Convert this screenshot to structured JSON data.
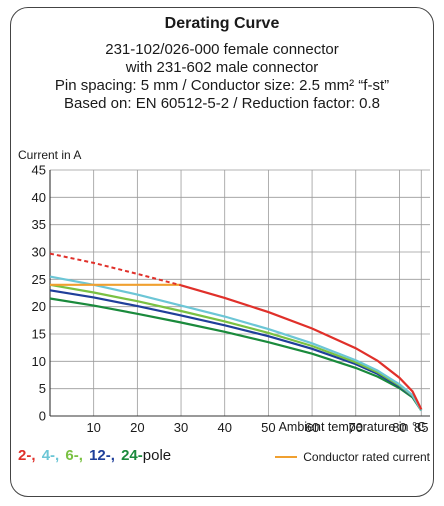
{
  "header": {
    "title": "Derating Curve",
    "line1": "231-102/026-000 female connector",
    "line2": "with 231-602 male connector",
    "line3": "Pin spacing: 5 mm / Conductor size: 2.5 mm² “f-st”",
    "line4": "Based on: EN 60512-5-2 / Reduction factor: 0.8"
  },
  "legend": {
    "poles": [
      {
        "label": "2-,",
        "color": "#e0302a"
      },
      {
        "label": "4-,",
        "color": "#6cc6d6"
      },
      {
        "label": "6-,",
        "color": "#7ac142"
      },
      {
        "label": "12-,",
        "color": "#1f3f9a"
      },
      {
        "label": "24-",
        "color": "#1a8a3c"
      }
    ],
    "poles_suffix": "pole",
    "rated_label": "Conductor rated current",
    "rated_color": "#f0a030"
  },
  "chart_data": {
    "type": "line",
    "title": "Derating Curve",
    "ylabel": "Current in A",
    "xlabel": "Ambient temperature in °C",
    "xlim": [
      0,
      87
    ],
    "ylim": [
      0,
      45
    ],
    "xticks": [
      10,
      20,
      30,
      40,
      50,
      60,
      70,
      80,
      85
    ],
    "yticks": [
      0,
      5,
      10,
      15,
      20,
      25,
      30,
      35,
      40,
      45
    ],
    "grid": true,
    "legend_position": "bottom",
    "series": [
      {
        "name": "2-",
        "color": "#e0302a",
        "points": [
          [
            0,
            29.7
          ],
          [
            10,
            28.0
          ],
          [
            20,
            26.0
          ],
          [
            30,
            23.9
          ],
          [
            40,
            21.6
          ],
          [
            50,
            19.0
          ],
          [
            60,
            16.0
          ],
          [
            70,
            12.4
          ],
          [
            75,
            10.1
          ],
          [
            80,
            7.0
          ],
          [
            83,
            4.5
          ],
          [
            85,
            1.2
          ]
        ],
        "dashed_until_x": 30
      },
      {
        "name": "4-",
        "color": "#6cc6d6",
        "points": [
          [
            0,
            25.5
          ],
          [
            10,
            24.0
          ],
          [
            20,
            22.2
          ],
          [
            30,
            20.2
          ],
          [
            40,
            18.2
          ],
          [
            50,
            15.9
          ],
          [
            60,
            13.3
          ],
          [
            70,
            10.2
          ],
          [
            75,
            8.3
          ],
          [
            80,
            5.8
          ],
          [
            83,
            3.8
          ],
          [
            85,
            1.0
          ]
        ]
      },
      {
        "name": "6-",
        "color": "#7ac142",
        "points": [
          [
            0,
            24.0
          ],
          [
            10,
            22.6
          ],
          [
            20,
            21.0
          ],
          [
            30,
            19.2
          ],
          [
            40,
            17.3
          ],
          [
            50,
            15.2
          ],
          [
            60,
            12.8
          ],
          [
            70,
            9.8
          ],
          [
            75,
            8.0
          ],
          [
            80,
            5.6
          ],
          [
            83,
            3.7
          ],
          [
            85,
            1.0
          ]
        ]
      },
      {
        "name": "12-",
        "color": "#1f3f9a",
        "points": [
          [
            0,
            23.0
          ],
          [
            10,
            21.7
          ],
          [
            20,
            20.1
          ],
          [
            30,
            18.4
          ],
          [
            40,
            16.6
          ],
          [
            50,
            14.6
          ],
          [
            60,
            12.3
          ],
          [
            70,
            9.5
          ],
          [
            75,
            7.7
          ],
          [
            80,
            5.4
          ],
          [
            83,
            3.6
          ],
          [
            85,
            1.0
          ]
        ]
      },
      {
        "name": "24-",
        "color": "#1a8a3c",
        "points": [
          [
            0,
            21.5
          ],
          [
            10,
            20.2
          ],
          [
            20,
            18.7
          ],
          [
            30,
            17.1
          ],
          [
            40,
            15.4
          ],
          [
            50,
            13.5
          ],
          [
            60,
            11.4
          ],
          [
            70,
            8.8
          ],
          [
            75,
            7.2
          ],
          [
            80,
            5.1
          ],
          [
            83,
            3.4
          ],
          [
            85,
            1.0
          ]
        ]
      },
      {
        "name": "Conductor rated current",
        "color": "#f0a030",
        "points": [
          [
            0,
            24.0
          ],
          [
            30,
            24.0
          ]
        ]
      }
    ]
  }
}
